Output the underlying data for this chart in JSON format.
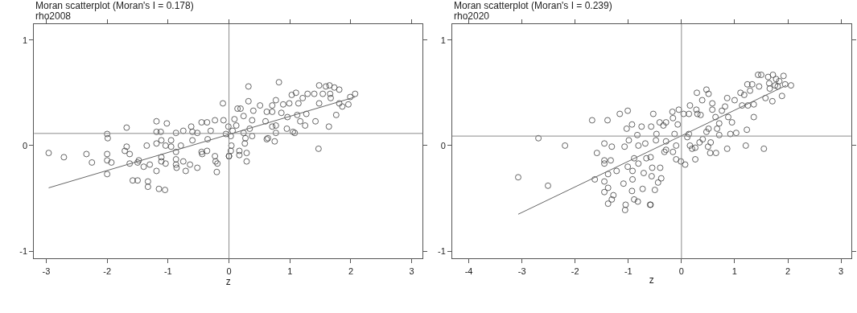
{
  "chart_data": [
    {
      "type": "scatter",
      "title": "Moran scatterplot (Moran's I = 0.178)",
      "subtitle": "rho2008",
      "xlabel": "z",
      "xlim": [
        -3.2,
        3.18
      ],
      "ylim": [
        -1.07,
        1.15
      ],
      "xticks": [
        -3,
        -2,
        -1,
        0,
        1,
        2,
        3
      ],
      "yticks": [
        -1,
        0,
        1
      ],
      "ref_lines": [
        {
          "axis": "x",
          "value": 0,
          "color": "#8c8c8c"
        },
        {
          "axis": "y",
          "value": 0.115,
          "color": "#8c8c8c"
        }
      ],
      "series": [
        {
          "type": "scatter",
          "marker": "circle",
          "color": "#404040",
          "x": [
            -2.96,
            -2.71,
            -2.34,
            -2.25,
            -2.0,
            -1.99,
            -2.0,
            -2.0,
            -1.93,
            -2.0,
            -1.68,
            -1.68,
            -1.71,
            -1.63,
            -1.63,
            -1.58,
            -1.5,
            -1.5,
            -1.48,
            -1.4,
            -1.33,
            -1.33,
            -1.3,
            -1.35,
            -1.19,
            -1.19,
            -1.19,
            -1.12,
            -1.11,
            -1.15,
            -1.05,
            -1.02,
            -1.04,
            -1.11,
            -1.04,
            -1.19,
            -1.11,
            -0.95,
            -0.95,
            -0.87,
            -0.87,
            -0.87,
            -0.87,
            -0.86,
            -0.79,
            -0.75,
            -0.75,
            -0.71,
            -0.64,
            -0.62,
            -0.6,
            -0.6,
            -0.52,
            -0.52,
            -0.45,
            -0.45,
            -0.44,
            -0.36,
            -0.36,
            -0.3,
            -0.35,
            -0.23,
            -0.23,
            -0.22,
            -0.2,
            -0.19,
            -0.1,
            -0.09,
            0.0,
            -0.01,
            -0.05,
            0.32,
            0.82,
            0.32,
            0.14,
            0.24,
            0.19,
            0.4,
            0.09,
            0.38,
            0.12,
            0.34,
            0.06,
            0.24,
            0.03,
            0.27,
            0.38,
            0.26,
            0.04,
            0.03,
            0.17,
            0.29,
            0.0,
            0.17,
            0.29,
            0.51,
            0.62,
            0.6,
            0.71,
            0.77,
            0.71,
            0.86,
            0.89,
            0.99,
            0.96,
            0.71,
            0.77,
            0.95,
            0.77,
            0.64,
            0.62,
            0.75,
            1.05,
            1.08,
            1.03,
            1.1,
            1.14,
            1.12,
            1.21,
            1.17,
            1.25,
            1.27,
            1.29,
            1.4,
            1.42,
            1.48,
            1.48,
            1.47,
            1.54,
            1.59,
            1.64,
            1.65,
            1.67,
            1.66,
            1.73,
            1.76,
            1.81,
            1.81,
            1.86,
            1.96,
            1.99,
            2.07
          ],
          "values": [
            -0.07,
            -0.11,
            -0.08,
            -0.16,
            0.11,
            0.07,
            -0.08,
            -0.14,
            -0.16,
            -0.27,
            0.17,
            -0.01,
            -0.05,
            -0.08,
            -0.17,
            -0.33,
            -0.33,
            -0.16,
            -0.14,
            -0.2,
            -0.34,
            -0.39,
            -0.18,
            0.0,
            0.23,
            0.13,
            0.02,
            0.13,
            0.05,
            -0.41,
            -0.42,
            0.21,
            0.0,
            -0.11,
            -0.17,
            -0.24,
            -0.15,
            0.05,
            -0.01,
            0.12,
            -0.06,
            -0.13,
            -0.18,
            -0.21,
            0.0,
            0.14,
            -0.15,
            -0.24,
            -0.18,
            0.18,
            0.13,
            0.05,
            -0.21,
            0.12,
            0.22,
            -0.06,
            -0.08,
            -0.05,
            0.22,
            0.14,
            0.06,
            0.24,
            -0.1,
            -0.15,
            -0.25,
            -0.17,
            0.4,
            0.24,
            -0.1,
            0.18,
            0.11,
            0.56,
            0.6,
            0.42,
            0.35,
            0.28,
            0.35,
            0.33,
            0.25,
            0.24,
            0.19,
            0.16,
            0.14,
            0.12,
            0.09,
            0.07,
            0.09,
            0.02,
            0.0,
            -0.05,
            -0.05,
            -0.07,
            -0.1,
            -0.09,
            -0.15,
            0.38,
            0.32,
            0.23,
            0.38,
            0.43,
            0.32,
            0.31,
            0.39,
            0.4,
            0.27,
            0.18,
            0.19,
            0.16,
            0.12,
            0.07,
            0.06,
            0.04,
            0.13,
            0.12,
            0.48,
            0.5,
            0.4,
            0.29,
            0.45,
            0.23,
            0.19,
            0.3,
            0.49,
            0.49,
            0.23,
            0.57,
            0.4,
            -0.03,
            0.49,
            0.56,
            0.18,
            0.57,
            0.45,
            0.49,
            0.55,
            0.29,
            0.53,
            0.4,
            0.37,
            0.39,
            0.46,
            0.49
          ]
        },
        {
          "type": "line",
          "color": "#666666",
          "x": [
            -2.96,
            2.07
          ],
          "values": [
            -0.4,
            0.46
          ]
        }
      ]
    },
    {
      "type": "scatter",
      "title": "Moran scatterplot (Moran's I = 0.239)",
      "subtitle": "rho2020",
      "xlabel": "z",
      "xlim": [
        -4.31,
        3.19
      ],
      "ylim": [
        -1.07,
        1.15
      ],
      "xticks": [
        -4,
        -3,
        -2,
        -1,
        0,
        1,
        2,
        3
      ],
      "yticks": [
        -1,
        0,
        1
      ],
      "ref_lines": [
        {
          "axis": "x",
          "value": 0,
          "color": "#8c8c8c"
        },
        {
          "axis": "y",
          "value": 0.09,
          "color": "#8c8c8c"
        }
      ],
      "series": [
        {
          "type": "scatter",
          "marker": "circle",
          "color": "#404040",
          "x": [
            -3.07,
            -2.69,
            -2.51,
            -2.19,
            -1.68,
            -1.39,
            -1.16,
            -1.01,
            -1.59,
            -1.63,
            -1.45,
            -1.45,
            -1.45,
            -1.33,
            -1.31,
            -1.45,
            -1.38,
            -1.38,
            -1.45,
            -1.31,
            -1.38,
            -1.28,
            -1.22,
            -1.09,
            -1.05,
            -1.06,
            -1.07,
            -1.03,
            -0.93,
            -0.99,
            -1.01,
            -0.92,
            -0.92,
            -0.93,
            -0.89,
            -0.82,
            -0.89,
            -0.81,
            -0.73,
            -0.71,
            -0.75,
            -0.83,
            -0.81,
            -0.68,
            -0.66,
            -0.59,
            -0.58,
            -0.5,
            -0.56,
            -0.44,
            -0.38,
            -0.4,
            -0.55,
            -0.58,
            -0.53,
            -0.57,
            -0.41,
            -0.47,
            -0.48,
            -0.34,
            -0.29,
            -0.17,
            -0.16,
            -0.05,
            -0.07,
            -0.13,
            -0.29,
            -0.29,
            -0.32,
            -0.16,
            -0.1,
            -0.1,
            -0.01,
            0.07,
            0.04,
            0.14,
            0.16,
            0.29,
            0.47,
            0.51,
            0.39,
            0.28,
            0.36,
            0.3,
            0.14,
            0.11,
            0.16,
            0.2,
            0.26,
            0.26,
            0.4,
            0.34,
            0.55,
            0.54,
            0.65,
            0.5,
            0.47,
            0.51,
            0.58,
            0.58,
            0.64,
            0.71,
            0.71,
            0.67,
            0.76,
            0.82,
            0.86,
            0.86,
            0.88,
            0.92,
            0.95,
            1.0,
            1.03,
            1.11,
            1.14,
            1.18,
            1.21,
            1.23,
            1.24,
            1.25,
            1.29,
            1.33,
            1.36,
            1.36,
            1.46,
            1.44,
            1.5,
            1.55,
            1.58,
            1.63,
            1.65,
            1.66,
            1.71,
            1.72,
            1.76,
            1.78,
            1.81,
            1.84,
            1.89,
            1.92,
            1.95,
            2.06
          ],
          "values": [
            -0.3,
            0.07,
            -0.38,
            0.0,
            0.24,
            0.24,
            0.3,
            0.33,
            -0.07,
            -0.32,
            0.02,
            -0.14,
            -0.17,
            -0.14,
            -0.01,
            -0.34,
            -0.27,
            -0.4,
            -0.44,
            -0.51,
            -0.55,
            -0.47,
            -0.24,
            -0.36,
            -0.56,
            -0.61,
            -0.01,
            0.16,
            0.2,
            0.05,
            -0.2,
            -0.24,
            -0.32,
            -0.43,
            -0.51,
            -0.53,
            -0.12,
            -0.17,
            -0.41,
            -0.26,
            0.18,
            0.1,
            0.0,
            0.02,
            -0.12,
            -0.56,
            -0.56,
            -0.42,
            -0.29,
            -0.35,
            -0.31,
            -0.21,
            -0.21,
            -0.11,
            0.3,
            0.18,
            0.22,
            0.11,
            0.05,
            0.19,
            0.22,
            0.32,
            0.26,
            0.34,
            0.2,
            0.11,
            0.04,
            -0.04,
            -0.06,
            -0.06,
            0.0,
            -0.13,
            -0.15,
            -0.18,
            0.3,
            0.3,
            0.38,
            0.5,
            0.53,
            0.49,
            0.43,
            0.34,
            0.29,
            0.3,
            0.11,
            0.08,
            0.0,
            -0.03,
            -0.02,
            -0.13,
            0.06,
            0.03,
            0.03,
            -0.07,
            -0.07,
            -0.01,
            0.13,
            0.16,
            0.4,
            0.34,
            0.27,
            0.21,
            0.1,
            0.16,
            0.33,
            0.37,
            0.45,
            -0.03,
            0.27,
            0.11,
            0.22,
            0.43,
            0.12,
            0.5,
            0.38,
            0.48,
            0.0,
            0.15,
            0.58,
            0.38,
            0.52,
            0.58,
            0.27,
            0.39,
            0.56,
            0.67,
            0.67,
            -0.03,
            0.45,
            0.65,
            0.59,
            0.54,
            0.42,
            0.67,
            0.57,
            0.63,
            0.56,
            0.61,
            0.47,
            0.66,
            0.58,
            0.57
          ]
        },
        {
          "type": "line",
          "color": "#666666",
          "x": [
            -3.07,
            1.97
          ],
          "values": [
            -0.65,
            0.57
          ]
        }
      ]
    }
  ]
}
